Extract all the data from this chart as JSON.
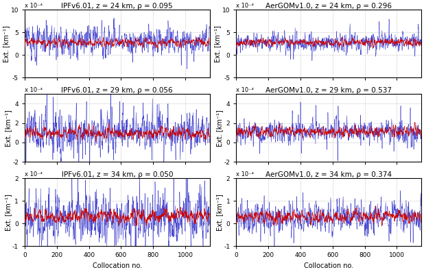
{
  "panels": [
    {
      "title": "IPFv6.01, z = 24 km, ρ = 0.095",
      "ylim": [
        -0.0005,
        0.001
      ],
      "yticks": [
        -0.0005,
        0,
        0.0005,
        0.001
      ],
      "yticklabels": [
        "-5",
        "0",
        "5",
        "10"
      ],
      "blue_mean": 0.0003,
      "blue_std": 0.00022,
      "blue_spike_prob": 0.08,
      "blue_spike_scale": 0.0006,
      "red_mean": 0.00028,
      "red_std": 9e-05,
      "red_smooth": 8
    },
    {
      "title": "AerGOMv1.0, z = 24 km, ρ = 0.296",
      "ylim": [
        -0.0005,
        0.001
      ],
      "yticks": [
        -0.0005,
        0,
        0.0005,
        0.001
      ],
      "yticklabels": [
        "-5",
        "0",
        "5",
        "10"
      ],
      "blue_mean": 0.00028,
      "blue_std": 0.00015,
      "blue_spike_prob": 0.04,
      "blue_spike_scale": 0.0005,
      "red_mean": 0.00028,
      "red_std": 8e-05,
      "red_smooth": 6
    },
    {
      "title": "IPFv6.01, z = 29 km, ρ = 0.056",
      "ylim": [
        -0.0002,
        0.0005
      ],
      "yticks": [
        -0.0002,
        0,
        0.0002,
        0.0004
      ],
      "yticklabels": [
        "-2",
        "0",
        "2",
        "4"
      ],
      "blue_mean": 0.0001,
      "blue_std": 0.00013,
      "blue_spike_prob": 0.1,
      "blue_spike_scale": 0.0004,
      "red_mean": 0.0001,
      "red_std": 6e-05,
      "red_smooth": 8
    },
    {
      "title": "AerGOMv1.0, z = 29 km, ρ = 0.537",
      "ylim": [
        -0.0002,
        0.0005
      ],
      "yticks": [
        -0.0002,
        0,
        0.0002,
        0.0004
      ],
      "yticklabels": [
        "-2",
        "0",
        "2",
        "4"
      ],
      "blue_mean": 0.00011,
      "blue_std": 9e-05,
      "blue_spike_prob": 0.05,
      "blue_spike_scale": 0.0003,
      "red_mean": 0.00011,
      "red_std": 5e-05,
      "red_smooth": 6
    },
    {
      "title": "IPFv6.01, z = 34 km, ρ = 0.050",
      "ylim": [
        -0.0001,
        0.0002
      ],
      "yticks": [
        -0.0001,
        0,
        0.0001,
        0.0002
      ],
      "yticklabels": [
        "-1",
        "0",
        "1",
        "2"
      ],
      "blue_mean": 2e-05,
      "blue_std": 7e-05,
      "blue_spike_prob": 0.1,
      "blue_spike_scale": 0.0002,
      "red_mean": 3e-05,
      "red_std": 3.5e-05,
      "red_smooth": 10
    },
    {
      "title": "AerGOMv1.0, z = 34 km, ρ = 0.374",
      "ylim": [
        -0.0001,
        0.0002
      ],
      "yticks": [
        -0.0001,
        0,
        0.0001,
        0.0002
      ],
      "yticklabels": [
        "-1",
        "0",
        "1",
        "2"
      ],
      "blue_mean": 2.5e-05,
      "blue_std": 5e-05,
      "blue_spike_prob": 0.04,
      "blue_spike_scale": 0.00015,
      "red_mean": 3e-05,
      "red_std": 2.8e-05,
      "red_smooth": 8
    }
  ],
  "n_points": 1152,
  "blue_color": "#3333cc",
  "red_color": "#cc0000",
  "xlabel": "Collocation no.",
  "ylabel": "Ext. [km⁻¹]",
  "exponent_label": "x 10⁻⁴",
  "xticks": [
    0,
    200,
    400,
    600,
    800,
    1000
  ],
  "xlim": [
    0,
    1152
  ],
  "background_color": "#ffffff",
  "grid_color": "#888888",
  "title_fontsize": 7.5,
  "label_fontsize": 7,
  "tick_fontsize": 6.5
}
